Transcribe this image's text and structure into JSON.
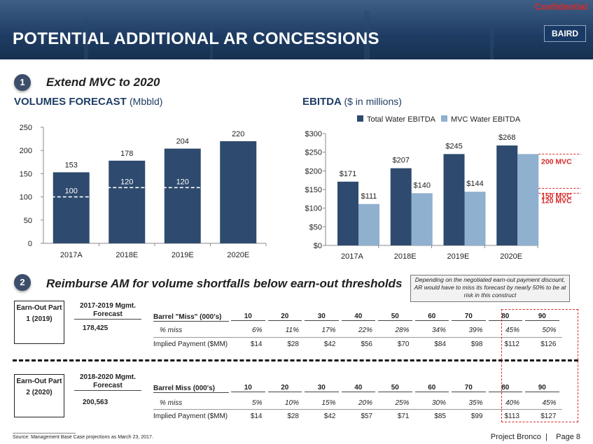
{
  "header": {
    "confidential": "Confidential",
    "title": "POTENTIAL ADDITIONAL AR CONCESSIONS",
    "logo": "BAIRD"
  },
  "section1": {
    "number": "1",
    "title": "Extend MVC to 2020"
  },
  "volumes_chart": {
    "title": "VOLUMES FORECAST",
    "title_unit": "(Mbbld)"
  },
  "ebitda_chart_meta": {
    "title": "EBITDA",
    "title_unit": "($ in millions)"
  },
  "chart_data": [
    {
      "type": "bar",
      "title": "VOLUMES FORECAST (Mbbld)",
      "categories": [
        "2017A",
        "2018E",
        "2019E",
        "2020E"
      ],
      "values": [
        153,
        178,
        204,
        220
      ],
      "data_labels": [
        "153",
        "178",
        "204",
        "220"
      ],
      "mvc_levels": [
        100,
        120,
        120,
        null
      ],
      "mvc_labels": [
        "100",
        "120",
        "120",
        ""
      ],
      "ylim": [
        0,
        250
      ],
      "yticks": [
        "0",
        "50",
        "100",
        "150",
        "200",
        "250"
      ],
      "ytick_values": [
        0,
        50,
        100,
        150,
        200,
        250
      ],
      "color": "#2e4a6e",
      "mvc_color": "#ffffff"
    },
    {
      "type": "bar",
      "title": "EBITDA ($ in millions)",
      "categories": [
        "2017A",
        "2018E",
        "2019E",
        "2020E"
      ],
      "series": [
        {
          "name": "Total Water EBITDA",
          "values": [
            171,
            207,
            245,
            268
          ],
          "labels": [
            "$171",
            "$207",
            "$245",
            "$268"
          ],
          "color": "#2e4a6e"
        },
        {
          "name": "MVC Water EBITDA",
          "values": [
            111,
            140,
            144,
            245
          ],
          "labels": [
            "$111",
            "$140",
            "$144",
            ""
          ],
          "color": "#8fb0cf"
        }
      ],
      "ylim": [
        0,
        300
      ],
      "yticks": [
        "$0",
        "$50",
        "$100",
        "$150",
        "$200",
        "$250",
        "$300"
      ],
      "ytick_values": [
        0,
        50,
        100,
        150,
        200,
        250,
        300
      ],
      "reference_lines": [
        {
          "value": 245,
          "label": "200 MVC"
        },
        {
          "value": 153,
          "label": "150 MVC"
        },
        {
          "value": 140,
          "label": "120 MVC"
        }
      ],
      "ref_color": "#d62828"
    }
  ],
  "section2": {
    "number": "2",
    "title": "Reimburse AM for volume shortfalls below earn-out thresholds",
    "note": "Depending on the negotiated earn-out payment discount, AR would have to miss its forecast by nearly 50% to be at risk in this construct"
  },
  "part1": {
    "label": "Earn-Out Part 1 (2019)",
    "mgmt_head": "2017-2019 Mgmt. Forecast",
    "mgmt_value": "178,425",
    "barrel_head": "Barrel \"Miss\" (000's)",
    "columns": [
      "10",
      "20",
      "30",
      "40",
      "50",
      "60",
      "70",
      "80",
      "90"
    ],
    "miss_label": "% miss",
    "miss": [
      "6%",
      "11%",
      "17%",
      "22%",
      "28%",
      "34%",
      "39%",
      "45%",
      "50%"
    ],
    "payment_label": "Implied Payment ($MM)",
    "payment": [
      "$14",
      "$28",
      "$42",
      "$56",
      "$70",
      "$84",
      "$98",
      "$112",
      "$126"
    ]
  },
  "part2": {
    "label": "Earn-Out Part 2 (2020)",
    "mgmt_head": "2018-2020 Mgmt. Forecast",
    "mgmt_value": "200,563",
    "barrel_head": "Barrel Miss (000's)",
    "columns": [
      "10",
      "20",
      "30",
      "40",
      "50",
      "60",
      "70",
      "80",
      "90"
    ],
    "miss_label": "% miss",
    "miss": [
      "5%",
      "10%",
      "15%",
      "20%",
      "25%",
      "30%",
      "35%",
      "40%",
      "45%"
    ],
    "payment_label": "Implied Payment ($MM)",
    "payment": [
      "$14",
      "$28",
      "$42",
      "$57",
      "$71",
      "$85",
      "$99",
      "$113",
      "$127"
    ]
  },
  "footer": {
    "source": "Source: Management Base Case projections as March 23, 2017.",
    "project": "Project Bronco",
    "separator": "|",
    "page": "Page 8"
  }
}
